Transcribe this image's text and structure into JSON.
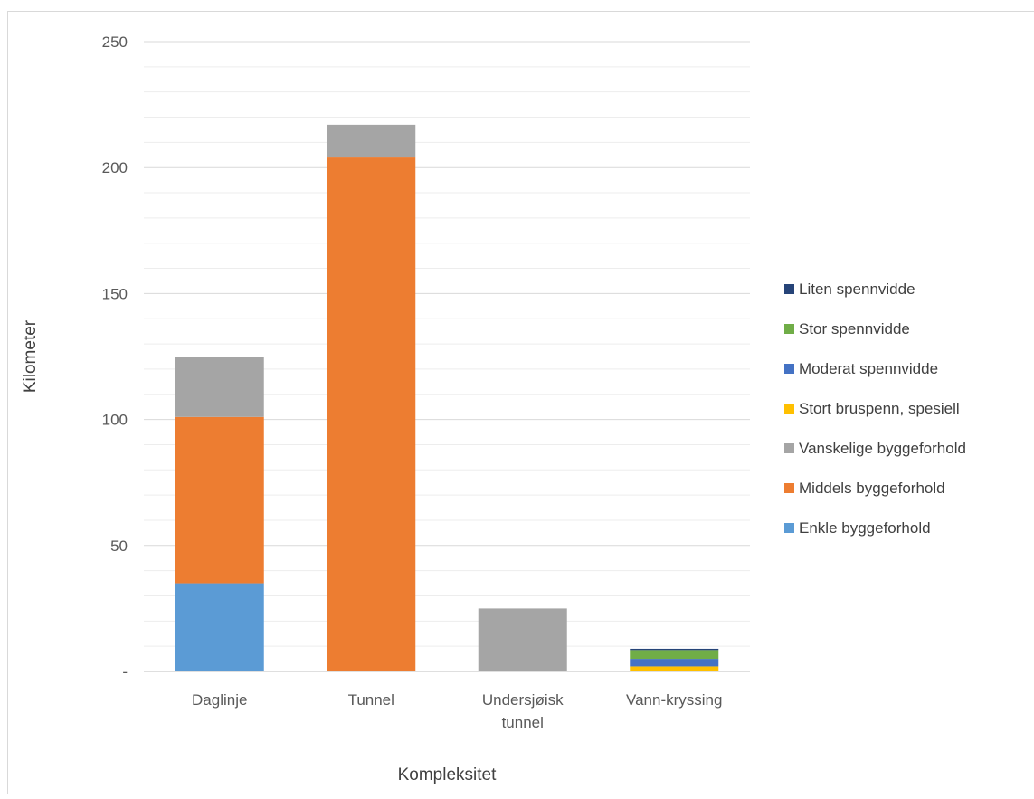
{
  "chart_data": {
    "type": "bar",
    "stacked": true,
    "title": "",
    "xlabel": "Kompleksitet",
    "ylabel": "Kilometer",
    "ylim": [
      0,
      250
    ],
    "major_ticks": [
      0,
      50,
      100,
      150,
      200,
      250
    ],
    "tick_labels": [
      "-",
      "50",
      "100",
      "150",
      "200",
      "250"
    ],
    "minor_step": 10,
    "grid": true,
    "legend_position": "right",
    "categories": [
      [
        "Daglinje"
      ],
      [
        "Tunnel"
      ],
      [
        "Undersjøisk",
        "tunnel"
      ],
      [
        "Vann-kryssing"
      ]
    ],
    "series": [
      {
        "name": "Enkle byggeforhold",
        "color": "#5B9BD5",
        "values": [
          35,
          0,
          0,
          0
        ]
      },
      {
        "name": "Middels byggeforhold",
        "color": "#ED7D31",
        "values": [
          66,
          204,
          0,
          0
        ]
      },
      {
        "name": "Vanskelige byggeforhold",
        "color": "#A5A5A5",
        "values": [
          24,
          13,
          25,
          0
        ]
      },
      {
        "name": "Stort bruspenn, spesiell",
        "color": "#FFC000",
        "values": [
          0,
          0,
          0,
          2
        ]
      },
      {
        "name": "Moderat spennvidde",
        "color": "#4472C4",
        "values": [
          0,
          0,
          0,
          3
        ]
      },
      {
        "name": "Stor spennvidde",
        "color": "#70AD47",
        "values": [
          0,
          0,
          0,
          3.5
        ]
      },
      {
        "name": "Liten spennvidde",
        "color": "#264478",
        "values": [
          0,
          0,
          0,
          0.5
        ]
      }
    ]
  }
}
